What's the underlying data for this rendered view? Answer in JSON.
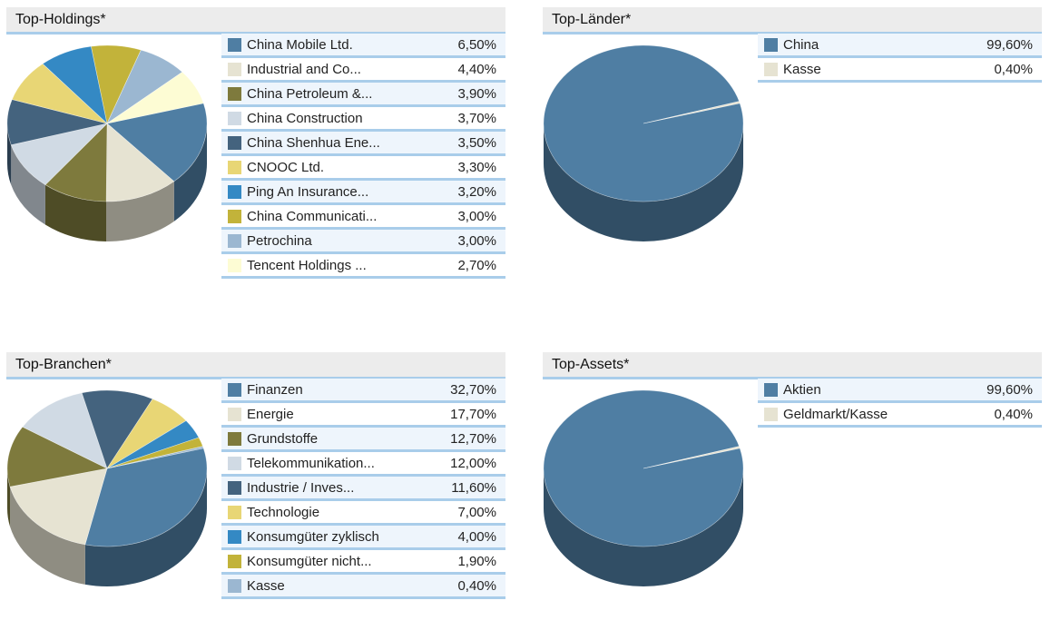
{
  "chart_data": [
    {
      "type": "pie",
      "title": "Top-Holdings*",
      "categories": [
        "China Mobile Ltd.",
        "Industrial and Co...",
        "China Petroleum &...",
        "China Construction",
        "China Shenhua Ene...",
        "CNOOC Ltd.",
        "Ping An Insurance...",
        "China Communicati...",
        "Petrochina",
        "Tencent Holdings ..."
      ],
      "values": [
        6.5,
        4.4,
        3.9,
        3.7,
        3.5,
        3.3,
        3.2,
        3.0,
        3.0,
        2.7
      ],
      "value_labels": [
        "6,50%",
        "4,40%",
        "3,90%",
        "3,70%",
        "3,50%",
        "3,30%",
        "3,20%",
        "3,00%",
        "3,00%",
        "2,70%"
      ],
      "colors": [
        "#4f7ea3",
        "#e6e3d2",
        "#7e7a3d",
        "#d0dae4",
        "#44637e",
        "#e8d675",
        "#3489c4",
        "#c2b33a",
        "#9bb7d1",
        "#fdfcd4"
      ],
      "legend": "right"
    },
    {
      "type": "pie",
      "title": "Top-Länder*",
      "categories": [
        "China",
        "Kasse"
      ],
      "values": [
        99.6,
        0.4
      ],
      "value_labels": [
        "99,60%",
        "0,40%"
      ],
      "colors": [
        "#4f7ea3",
        "#e6e3d2"
      ],
      "legend": "right"
    },
    {
      "type": "pie",
      "title": "Top-Branchen*",
      "categories": [
        "Finanzen",
        "Energie",
        "Grundstoffe",
        "Telekommunikation...",
        "Industrie / Inves...",
        "Technologie",
        "Konsumgüter zyklisch",
        "Konsumgüter nicht...",
        "Kasse"
      ],
      "values": [
        32.7,
        17.7,
        12.7,
        12.0,
        11.6,
        7.0,
        4.0,
        1.9,
        0.4
      ],
      "value_labels": [
        "32,70%",
        "17,70%",
        "12,70%",
        "12,00%",
        "11,60%",
        "7,00%",
        "4,00%",
        "1,90%",
        "0,40%"
      ],
      "colors": [
        "#4f7ea3",
        "#e6e3d2",
        "#7e7a3d",
        "#d0dae4",
        "#44637e",
        "#e8d675",
        "#3489c4",
        "#c2b33a",
        "#9bb7d1"
      ],
      "legend": "right"
    },
    {
      "type": "pie",
      "title": "Top-Assets*",
      "categories": [
        "Aktien",
        "Geldmarkt/Kasse"
      ],
      "values": [
        99.6,
        0.4
      ],
      "value_labels": [
        "99,60%",
        "0,40%"
      ],
      "colors": [
        "#4f7ea3",
        "#e6e3d2"
      ],
      "legend": "right"
    }
  ]
}
